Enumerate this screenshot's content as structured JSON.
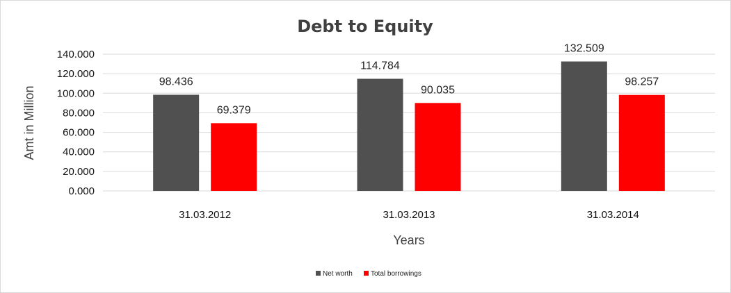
{
  "chart_data": {
    "type": "bar",
    "title": "Debt to Equity",
    "xlabel": "Years",
    "ylabel": "Amt in Million",
    "categories": [
      "31.03.2012",
      "31.03.2013",
      "31.03.2014"
    ],
    "series": [
      {
        "name": "Net worth",
        "values": [
          98.436,
          114.784,
          132.509
        ],
        "value_labels": [
          "98.436",
          "114.784",
          "132.509"
        ],
        "color": "#505050"
      },
      {
        "name": "Total borrowings",
        "values": [
          69.379,
          90.035,
          98.257
        ],
        "value_labels": [
          "69.379",
          "90.035",
          "98.257"
        ],
        "color": "#ff0000"
      }
    ],
    "yticks": [
      0,
      20,
      40,
      60,
      80,
      100,
      120,
      140
    ],
    "ytick_labels": [
      "0.000",
      "20.000",
      "40.000",
      "60.000",
      "80.000",
      "100.000",
      "120.000",
      "140.000"
    ],
    "ylim": [
      0,
      140
    ],
    "grid": true,
    "legend_position": "bottom"
  }
}
